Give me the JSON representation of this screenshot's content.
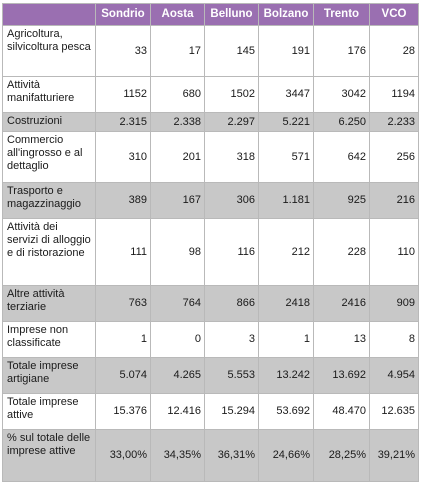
{
  "table": {
    "headers": [
      "",
      "Sondrio",
      "Aosta",
      "Belluno",
      "Bolzano",
      "Trento",
      "VCO"
    ],
    "rows": [
      {
        "label": "Agricoltura, silvicoltura pesca",
        "values": [
          "33",
          "17",
          "145",
          "191",
          "176",
          "28"
        ]
      },
      {
        "label": "Attività manifatturiere",
        "values": [
          "1152",
          "680",
          "1502",
          "3447",
          "3042",
          "1194"
        ]
      },
      {
        "label": "Costruzioni",
        "values": [
          "2.315",
          "2.338",
          "2.297",
          "5.221",
          "6.250",
          "2.233"
        ]
      },
      {
        "label": "Commercio all'ingrosso e al dettaglio",
        "values": [
          "310",
          "201",
          "318",
          "571",
          "642",
          "256"
        ]
      },
      {
        "label": "Trasporto e magazzinaggio",
        "values": [
          "389",
          "167",
          "306",
          "1.181",
          "925",
          "216"
        ]
      },
      {
        "label": "Attività dei servizi di alloggio e di ristorazione",
        "values": [
          "111",
          "98",
          "116",
          "212",
          "228",
          "110"
        ]
      },
      {
        "label": "Altre attività terziarie",
        "values": [
          "763",
          "764",
          "866",
          "2418",
          "2416",
          "909"
        ]
      },
      {
        "label": "Imprese non classificate",
        "values": [
          "1",
          "0",
          "3",
          "1",
          "13",
          "8"
        ]
      },
      {
        "label": "Totale imprese artigiane",
        "values": [
          "5.074",
          "4.265",
          "5.553",
          "13.242",
          "13.692",
          "4.954"
        ]
      },
      {
        "label": "Totale imprese attive",
        "values": [
          "15.376",
          "12.416",
          "15.294",
          "53.692",
          "48.470",
          "12.635"
        ]
      },
      {
        "label": "% sul totale delle imprese attive",
        "values": [
          "33,00%",
          "34,35%",
          "36,31%",
          "24,66%",
          "28,25%",
          "39,21%"
        ]
      }
    ]
  },
  "colors": {
    "header_bg": "#9a6fb1",
    "header_text": "#ffffff",
    "row_dark": "#c8c8c8",
    "row_light": "#ffffff",
    "border": "#b9b9b9"
  }
}
